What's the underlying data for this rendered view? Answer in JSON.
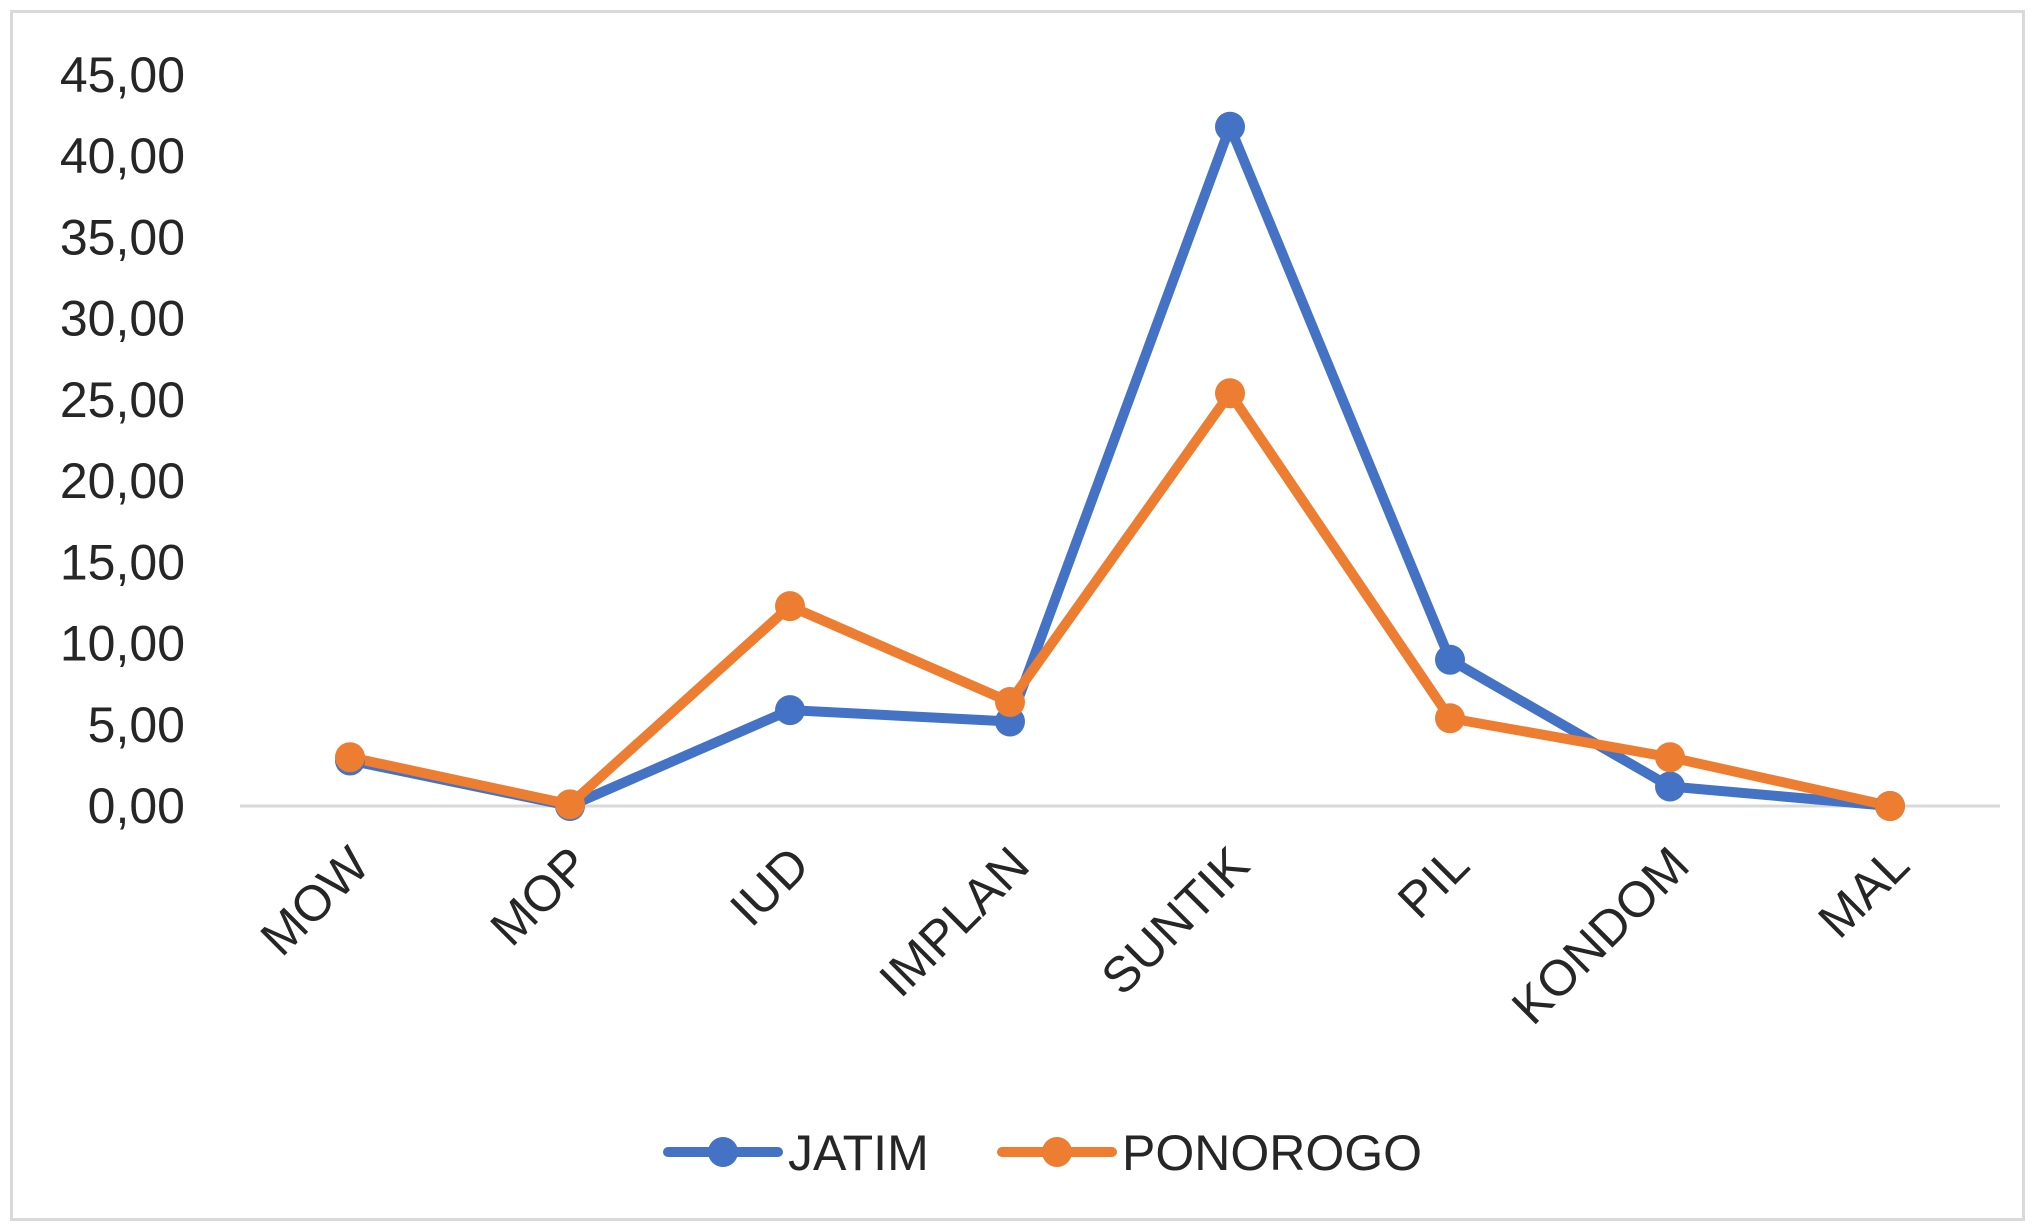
{
  "chart_data": {
    "type": "line",
    "categories": [
      "MOW",
      "MOP",
      "IUD",
      "IMPLAN",
      "SUNTIK",
      "PIL",
      "KONDOM",
      "MAL"
    ],
    "ytick_labels": [
      "0,00",
      "5,00",
      "10,00",
      "15,00",
      "20,00",
      "25,00",
      "30,00",
      "35,00",
      "40,00",
      "45,00"
    ],
    "ylim": [
      0,
      45
    ],
    "ystep": 5,
    "grid": false,
    "legend_position": "bottom",
    "series": [
      {
        "name": "JATIM",
        "color": "#4472C4",
        "values": [
          2.8,
          0.0,
          5.9,
          5.2,
          41.8,
          9.0,
          1.2,
          0.0
        ]
      },
      {
        "name": "PONOROGO",
        "color": "#ED7D31",
        "values": [
          3.0,
          0.1,
          12.3,
          6.4,
          25.4,
          5.4,
          3.0,
          0.0
        ]
      }
    ]
  }
}
